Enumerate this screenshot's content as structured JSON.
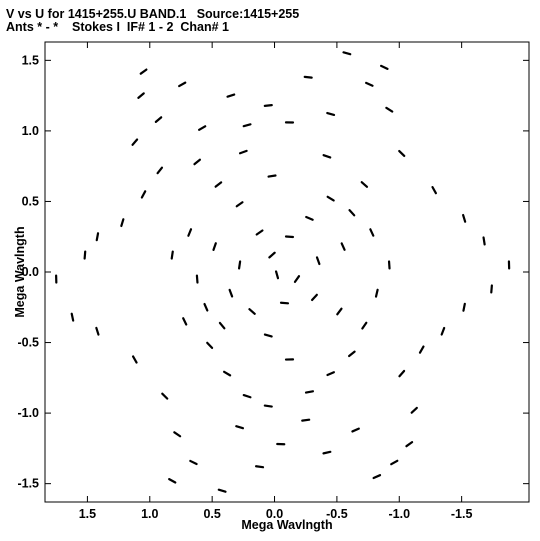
{
  "header": {
    "line1": "V vs U for 1415+255.U BAND.1   Source:1415+255",
    "line2": "Ants * - *    Stokes I  IF# 1 - 2  Chan# 1"
  },
  "chart_data": {
    "type": "scatter",
    "title": "V vs U for 1415+255.U BAND.1   Source:1415+255",
    "subtitle": "Ants * - *    Stokes I  IF# 1 - 2  Chan# 1",
    "xlabel": "Mega Wavlngth",
    "ylabel": "Mega Wavlngth",
    "xlim": [
      1.84,
      -2.04
    ],
    "ylim": [
      -1.63,
      1.63
    ],
    "x_ticks": [
      {
        "value": 1.5,
        "label": "1.5"
      },
      {
        "value": 1.0,
        "label": "1.0"
      },
      {
        "value": 0.5,
        "label": "0.5"
      },
      {
        "value": 0.0,
        "label": "0.0"
      },
      {
        "value": -0.5,
        "label": "-0.5"
      },
      {
        "value": -1.0,
        "label": "-1.0"
      },
      {
        "value": -1.5,
        "label": "-1.5"
      }
    ],
    "y_ticks": [
      {
        "value": 1.5,
        "label": "1.5"
      },
      {
        "value": 1.0,
        "label": "1.0"
      },
      {
        "value": 0.5,
        "label": "0.5"
      },
      {
        "value": 0.0,
        "label": "0.0"
      },
      {
        "value": -0.5,
        "label": "-0.5"
      },
      {
        "value": -1.0,
        "label": "-1.0"
      },
      {
        "value": -1.5,
        "label": "-1.5"
      }
    ],
    "grid": false,
    "marker_color": "#000000",
    "series": [
      {
        "values": [
          [
            1.07,
            1.25
          ],
          [
            1.05,
            1.42
          ],
          [
            0.93,
            1.08
          ],
          [
            0.74,
            1.33
          ],
          [
            0.58,
            1.02
          ],
          [
            0.35,
            1.25
          ],
          [
            0.22,
            1.04
          ],
          [
            0.05,
            1.18
          ],
          [
            -0.12,
            1.06
          ],
          [
            -0.27,
            1.38
          ],
          [
            -0.45,
            1.12
          ],
          [
            -0.58,
            1.55
          ],
          [
            -0.76,
            1.33
          ],
          [
            -0.88,
            1.45
          ],
          [
            -0.92,
            1.15
          ],
          [
            -1.02,
            0.84
          ],
          [
            -1.28,
            0.58
          ],
          [
            -1.52,
            0.38
          ],
          [
            -1.68,
            0.22
          ],
          [
            -1.88,
            0.05
          ],
          [
            -1.74,
            -0.12
          ],
          [
            -1.52,
            -0.25
          ],
          [
            -1.35,
            -0.42
          ],
          [
            -1.18,
            -0.55
          ],
          [
            -1.02,
            -0.72
          ],
          [
            -1.12,
            -0.98
          ],
          [
            -1.08,
            -1.22
          ],
          [
            -0.96,
            -1.35
          ],
          [
            -0.82,
            -1.45
          ],
          [
            -0.65,
            -1.12
          ],
          [
            -0.42,
            -1.28
          ],
          [
            -0.25,
            -1.05
          ],
          [
            -0.05,
            -1.22
          ],
          [
            0.12,
            -1.38
          ],
          [
            0.28,
            -1.1
          ],
          [
            0.42,
            -1.55
          ],
          [
            0.65,
            -1.35
          ],
          [
            0.82,
            -1.48
          ],
          [
            0.78,
            -1.15
          ],
          [
            0.88,
            -0.88
          ],
          [
            1.12,
            -0.62
          ],
          [
            1.42,
            -0.42
          ],
          [
            1.62,
            -0.32
          ],
          [
            1.75,
            -0.05
          ],
          [
            1.52,
            0.12
          ],
          [
            1.42,
            0.25
          ],
          [
            1.22,
            0.35
          ],
          [
            1.05,
            0.55
          ],
          [
            0.92,
            0.72
          ],
          [
            1.12,
            0.92
          ],
          [
            0.62,
            0.78
          ],
          [
            0.45,
            0.62
          ],
          [
            0.28,
            0.48
          ],
          [
            0.12,
            0.28
          ],
          [
            0.02,
            0.12
          ],
          [
            -0.12,
            0.25
          ],
          [
            -0.28,
            0.38
          ],
          [
            -0.45,
            0.52
          ],
          [
            -0.62,
            0.42
          ],
          [
            -0.78,
            0.28
          ],
          [
            -0.55,
            0.18
          ],
          [
            -0.35,
            0.08
          ],
          [
            -0.18,
            -0.05
          ],
          [
            -0.32,
            -0.18
          ],
          [
            -0.52,
            -0.28
          ],
          [
            -0.72,
            -0.38
          ],
          [
            -0.62,
            -0.58
          ],
          [
            -0.45,
            -0.72
          ],
          [
            -0.28,
            -0.85
          ],
          [
            -0.12,
            -0.62
          ],
          [
            0.05,
            -0.45
          ],
          [
            0.18,
            -0.28
          ],
          [
            0.35,
            -0.15
          ],
          [
            0.55,
            -0.25
          ],
          [
            0.72,
            -0.35
          ],
          [
            0.52,
            -0.52
          ],
          [
            0.38,
            -0.72
          ],
          [
            0.22,
            -0.88
          ],
          [
            0.05,
            -0.95
          ],
          [
            -0.08,
            -0.22
          ],
          [
            0.28,
            0.05
          ],
          [
            0.48,
            0.18
          ],
          [
            0.68,
            0.28
          ],
          [
            0.82,
            0.12
          ],
          [
            0.62,
            -0.05
          ],
          [
            0.42,
            -0.38
          ],
          [
            -0.82,
            -0.15
          ],
          [
            -0.92,
            0.05
          ],
          [
            -0.72,
            0.62
          ],
          [
            -0.42,
            0.82
          ],
          [
            0.25,
            0.85
          ],
          [
            0.02,
            0.68
          ],
          [
            -0.02,
            -0.02
          ]
        ]
      }
    ]
  }
}
